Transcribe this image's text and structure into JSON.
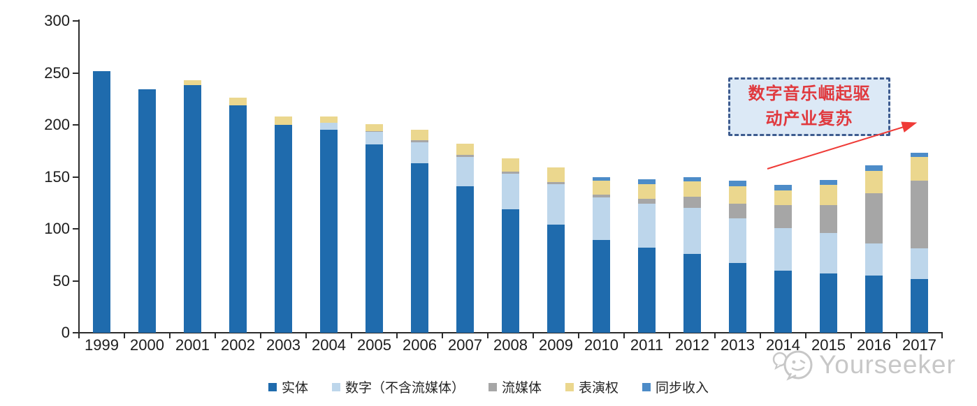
{
  "chart_data": {
    "type": "bar",
    "stacked": true,
    "title": "",
    "xlabel": "",
    "ylabel": "",
    "ylim": [
      0,
      300
    ],
    "yticks": [
      0,
      50,
      100,
      150,
      200,
      250,
      300
    ],
    "grid": false,
    "legend_position": "bottom",
    "categories": [
      "1999",
      "2000",
      "2001",
      "2002",
      "2003",
      "2004",
      "2005",
      "2006",
      "2007",
      "2008",
      "2009",
      "2010",
      "2011",
      "2012",
      "2013",
      "2014",
      "2015",
      "2016",
      "2017"
    ],
    "series": [
      {
        "key": "physical",
        "name": "实体",
        "color": "#1f6bad",
        "values": [
          252,
          234,
          238,
          219,
          200,
          195,
          181,
          163,
          141,
          119,
          104,
          89,
          82,
          76,
          67,
          60,
          57,
          55,
          52
        ]
      },
      {
        "key": "digital-excl-streaming",
        "name": "数字（不含流媒体）",
        "color": "#bdd6eb",
        "values": [
          0,
          0,
          0,
          0,
          0,
          7,
          12,
          20,
          28,
          34,
          39,
          41,
          42,
          44,
          43,
          41,
          39,
          31,
          29
        ]
      },
      {
        "key": "streaming",
        "name": "流媒体",
        "color": "#a6a6a6",
        "values": [
          0,
          0,
          0,
          0,
          0,
          0,
          1,
          2,
          2,
          2,
          2,
          3,
          5,
          11,
          14,
          22,
          27,
          48,
          65
        ]
      },
      {
        "key": "performance-rights",
        "name": "表演权",
        "color": "#ebd78e",
        "values": [
          0,
          0,
          5,
          7,
          8,
          6,
          7,
          10,
          11,
          13,
          14,
          13,
          14,
          15,
          17,
          14,
          19,
          22,
          23
        ]
      },
      {
        "key": "sync",
        "name": "同步收入",
        "color": "#4d8cc8",
        "values": [
          0,
          0,
          0,
          0,
          0,
          0,
          0,
          0,
          0,
          0,
          0,
          4,
          5,
          4,
          5,
          5,
          5,
          5,
          4
        ]
      }
    ]
  },
  "annotation": {
    "text": "数字音乐崛起驱动产业复苏",
    "text_color": "#e0393e",
    "box_border_color": "#3d5b8f",
    "box_fill": "#dce9f6",
    "arrow_color": "#ef3b37"
  },
  "watermark": {
    "brand": "Yourseeker",
    "color": "#c7c7c7",
    "logo": "speech-bubble-face-icon"
  }
}
